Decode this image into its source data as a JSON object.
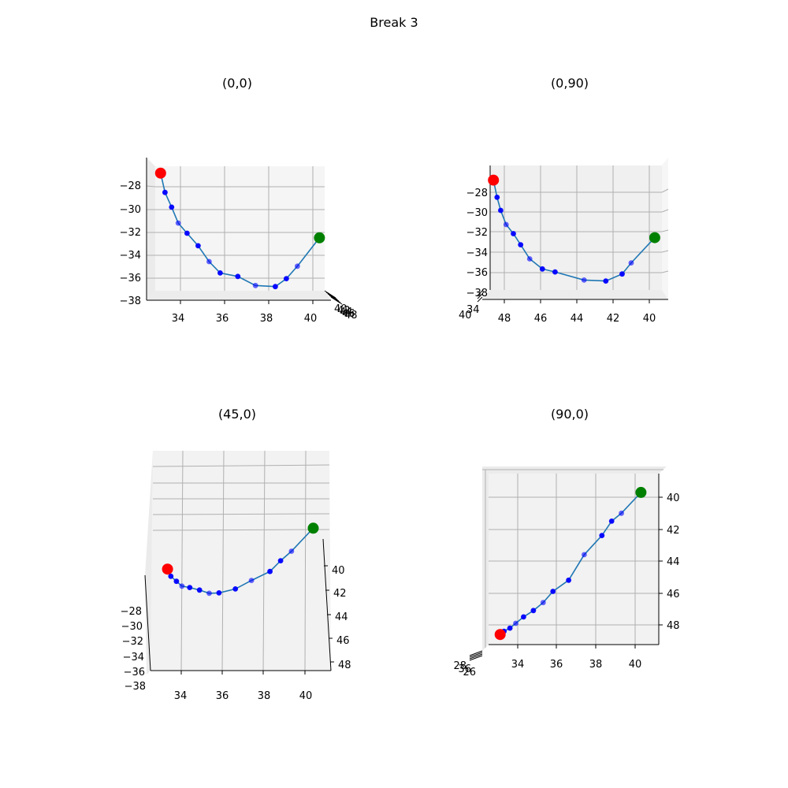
{
  "chart_data": {
    "type": "scatter",
    "title": "Break 3",
    "trajectory": {
      "x": [
        33.1,
        33.3,
        33.6,
        33.9,
        34.3,
        34.8,
        35.3,
        35.8,
        36.6,
        37.4,
        38.3,
        38.8,
        39.3,
        40.3
      ],
      "y": [
        48.6,
        48.4,
        48.2,
        47.9,
        47.5,
        47.1,
        46.6,
        45.9,
        45.2,
        43.6,
        42.4,
        41.5,
        41.0,
        39.7
      ],
      "z": [
        -26.8,
        -28.5,
        -29.8,
        -31.2,
        -32.1,
        -33.2,
        -34.6,
        -35.6,
        -35.9,
        -36.7,
        -36.8,
        -36.1,
        -35.0,
        -32.5
      ]
    },
    "start_point": {
      "x": 33.1,
      "y": 48.6,
      "z": -26.8,
      "color": "#ff0000"
    },
    "end_point": {
      "x": 40.3,
      "y": 39.7,
      "z": -32.5,
      "color": "#008000"
    },
    "colors": {
      "line": "#1f77b4",
      "points": "#0000ff",
      "start": "#ff0000",
      "end": "#008000"
    },
    "grid": true,
    "subplots": [
      {
        "title": "(0,0)",
        "xticks": [
          "34",
          "36",
          "38",
          "40"
        ],
        "zticks": [
          "−28",
          "−30",
          "−32",
          "−34",
          "−36",
          "−38"
        ],
        "yticks": [
          "40",
          "42",
          "44",
          "46",
          "48"
        ]
      },
      {
        "title": "(0,90)",
        "yticks": [
          "48",
          "46",
          "44",
          "42",
          "40"
        ],
        "zticks": [
          "−28",
          "−30",
          "−32",
          "−34",
          "−36",
          "−38"
        ],
        "xticks": [
          "34",
          "40"
        ]
      },
      {
        "title": "(45,0)",
        "xticks": [
          "34",
          "36",
          "38",
          "40"
        ],
        "yticks": [
          "40",
          "42",
          "44",
          "46",
          "48"
        ],
        "zticks": [
          "−28",
          "−30",
          "−32",
          "−34",
          "−36",
          "−38"
        ]
      },
      {
        "title": "(90,0)",
        "xticks": [
          "34",
          "36",
          "38",
          "40"
        ],
        "yticks": [
          "40",
          "42",
          "44",
          "46",
          "48"
        ],
        "zticks": [
          "28",
          "36",
          "26"
        ]
      }
    ]
  }
}
